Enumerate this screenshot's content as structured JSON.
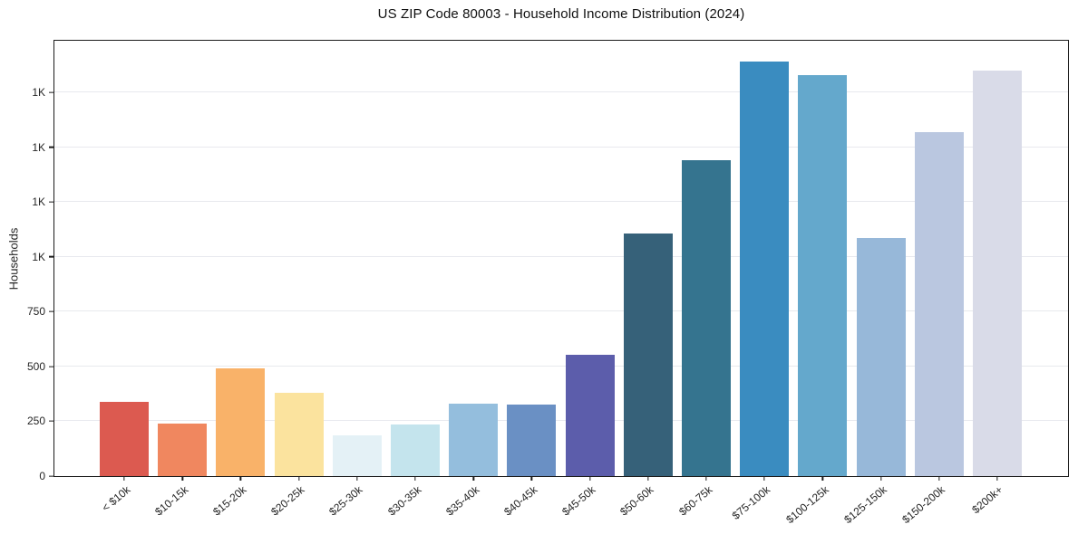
{
  "figure": {
    "title": "US ZIP Code 80003 - Household Income Distribution (2024)",
    "ylabel": "Households"
  },
  "chart_data": {
    "type": "bar",
    "title": "US ZIP Code 80003 - Household Income Distribution (2024)",
    "xlabel": "",
    "ylabel": "Households",
    "categories": [
      "< $10k",
      "$10-15k",
      "$15-20k",
      "$20-25k",
      "$25-30k",
      "$30-35k",
      "$35-40k",
      "$40-45k",
      "$45-50k",
      "$50-60k",
      "$60-75k",
      "$75-100k",
      "$100-125k",
      "$125-150k",
      "$150-200k",
      "$200k+"
    ],
    "values": [
      340,
      240,
      490,
      380,
      185,
      235,
      330,
      325,
      555,
      1105,
      1440,
      1890,
      1830,
      1085,
      1570,
      1850
    ],
    "bar_colors": [
      "#dc5a50",
      "#f0875f",
      "#f9b269",
      "#fbe39e",
      "#e4f1f6",
      "#c4e4ed",
      "#94bedd",
      "#6a90c4",
      "#5c5dab",
      "#366179",
      "#35748f",
      "#3a8cc0",
      "#64a8cc",
      "#97b8d9",
      "#bac7e0",
      "#d9dbe8"
    ],
    "ylim": [
      0,
      1985
    ],
    "yticks": [
      {
        "value": 0,
        "label": "0"
      },
      {
        "value": 250,
        "label": "250"
      },
      {
        "value": 500,
        "label": "500"
      },
      {
        "value": 750,
        "label": "750"
      },
      {
        "value": 1000,
        "label": "1K"
      },
      {
        "value": 1250,
        "label": "1K"
      },
      {
        "value": 1500,
        "label": "1K"
      },
      {
        "value": 1750,
        "label": "1K"
      }
    ],
    "grid": "horizontal",
    "legend": "none",
    "colors": {
      "spine": "#1c1c1c",
      "gridline": "#e8e9ee",
      "tick_text": "#262626",
      "background": "#ffffff"
    }
  }
}
